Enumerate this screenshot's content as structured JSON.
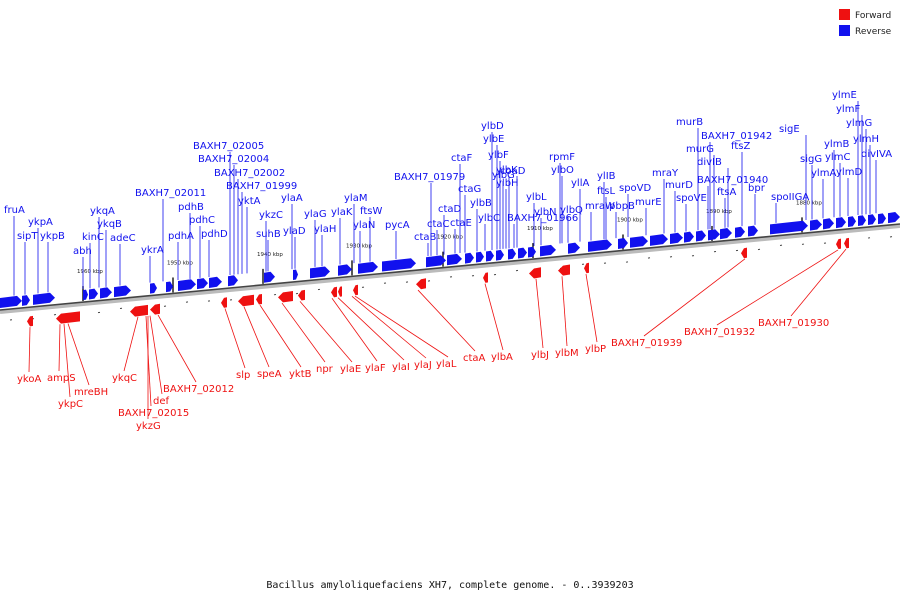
{
  "legend": {
    "forward_label": "Forward",
    "reverse_label": "Reverse",
    "forward_color": "#ee1111",
    "reverse_color": "#1111ee"
  },
  "caption": "Bacillus amyloliquefaciens XH7, complete genome. - 0..3939203",
  "ticks": [
    "1960 kbp",
    "1950 kbp",
    "1940 kbp",
    "1930 kbp",
    "1920 kbp",
    "1910 kbp",
    "1900 kbp",
    "1890 kbp",
    "1880 kbp"
  ],
  "reverse_genes": [
    "fruA",
    "sipT",
    "ykpA",
    "ykpB",
    "abh",
    "kinC",
    "ykqA",
    "ykqB",
    "adeC",
    "ykrA",
    "BAXH7_02011",
    "pdhA",
    "pdhB",
    "pdhC",
    "pdhD",
    "BAXH7_02005",
    "BAXH7_02004",
    "BAXH7_02002",
    "BAXH7_01999",
    "yktA",
    "ykzC",
    "suhB",
    "ylaA",
    "ylaD",
    "ylaG",
    "ylaH",
    "ylaK",
    "ylaM",
    "ylaN",
    "ftsW",
    "pycA",
    "BAXH7_01979",
    "ctaB",
    "ctaC",
    "ctaD",
    "ctaE",
    "ctaF",
    "ctaG",
    "ylbB",
    "ylbC",
    "ylbD",
    "ylbE",
    "ylbF",
    "ylbG",
    "ylbH",
    "coaD",
    "BAXH7_01966",
    "ylbK",
    "ylbL",
    "ylbN",
    "rpmF",
    "ylbO",
    "ylbQ",
    "yllA",
    "mraW",
    "ylIB",
    "ftsL",
    "pbpB",
    "spoVD",
    "murE",
    "mraY",
    "murD",
    "spoVE",
    "murB",
    "BAXH7_01942",
    "murG",
    "BAXH7_01940",
    "divIB",
    "ftsA",
    "ftsZ",
    "bpr",
    "spoIIGA",
    "sigE",
    "sigG",
    "ylmA",
    "ylmB",
    "ylmC",
    "ylmD",
    "ylmE",
    "ylmF",
    "ylmG",
    "ylmH",
    "divIVA"
  ],
  "forward_genes": [
    "ykoA",
    "ampS",
    "ykpC",
    "mreBH",
    "ykqC",
    "BAXH7_02015",
    "def",
    "ykzG",
    "BAXH7_02012",
    "slp",
    "speA",
    "yktB",
    "npr",
    "ylaE",
    "ylaF",
    "ylaI",
    "ylaJ",
    "ylaL",
    "ctaA",
    "ylbA",
    "ylbJ",
    "ylbM",
    "ylbP",
    "BAXH7_01939",
    "BAXH7_01932",
    "BAXH7_01930"
  ]
}
